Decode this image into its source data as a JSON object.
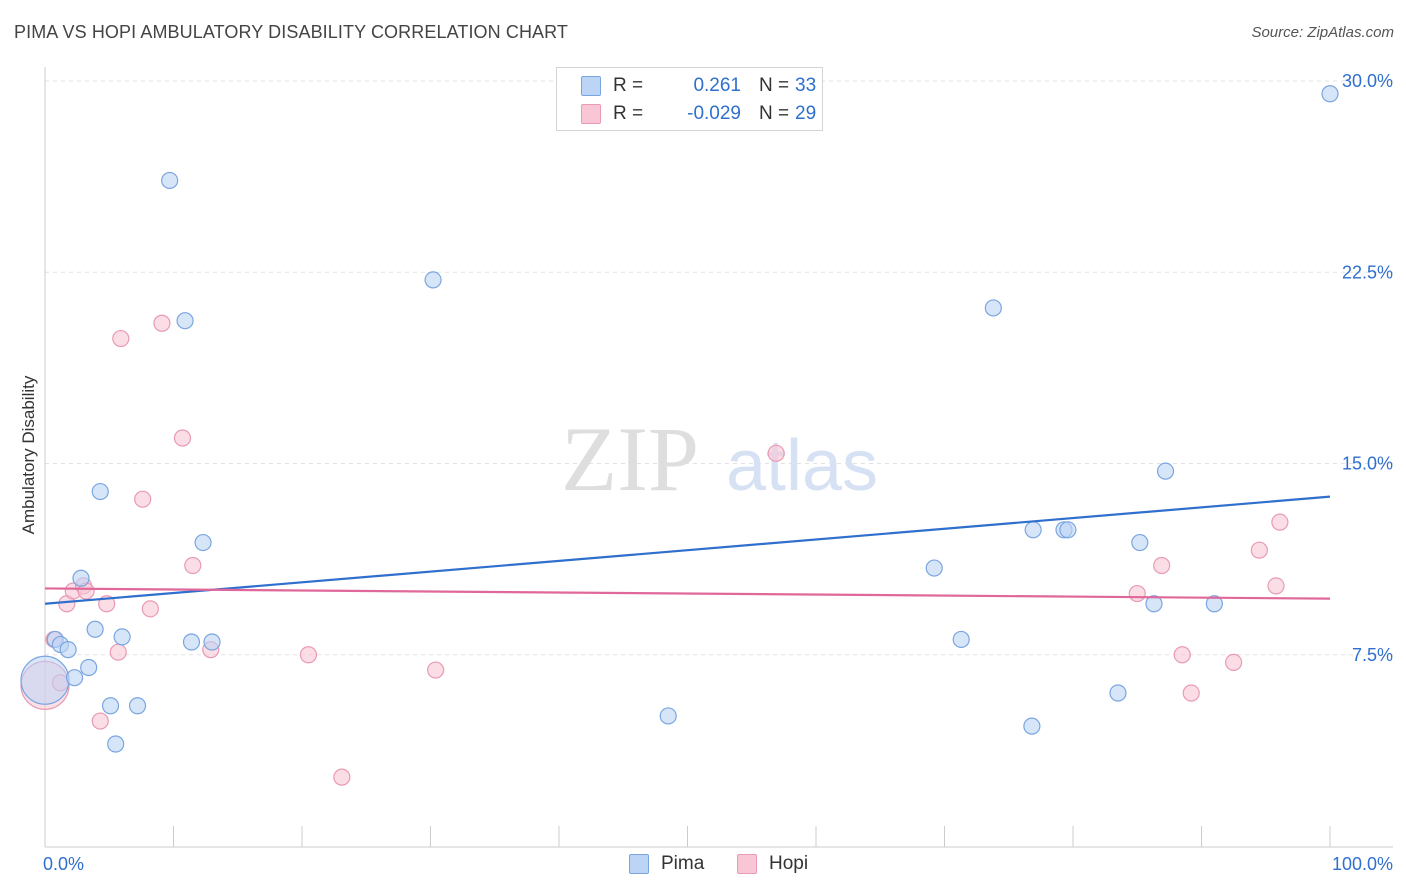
{
  "header": {
    "title": "PIMA VS HOPI AMBULATORY DISABILITY CORRELATION CHART",
    "source": "Source: ZipAtlas.com"
  },
  "watermark": {
    "part1": "ZIP",
    "part2": "atlas"
  },
  "legend": {
    "r_label": "R =",
    "n_label": "N =",
    "rows": [
      {
        "r": "0.261",
        "n": "33",
        "fill": "#bcd4f5",
        "stroke": "#7aa6e0"
      },
      {
        "r": "-0.029",
        "n": "29",
        "fill": "#f9c6d6",
        "stroke": "#e99ab4"
      }
    ]
  },
  "chart_data": {
    "type": "scatter",
    "ylabel": "Ambulatory Disability",
    "xlim": [
      0,
      100
    ],
    "ylim": [
      0,
      30
    ],
    "x_tick_labels": [
      {
        "value": 0,
        "label": "0.0%"
      },
      {
        "value": 100,
        "label": "100.0%"
      }
    ],
    "y_ticks": [
      {
        "value": 7.5,
        "label": "7.5%"
      },
      {
        "value": 15,
        "label": "15.0%"
      },
      {
        "value": 22.5,
        "label": "22.5%"
      },
      {
        "value": 30,
        "label": "30.0%"
      }
    ],
    "grid": true,
    "series": [
      {
        "name": "Pima",
        "color": "#2f6fcd",
        "fill": "#bcd4f5",
        "stroke": "#7aa6e0",
        "trend": [
          {
            "x": 0,
            "y": 9.5
          },
          {
            "x": 100,
            "y": 13.7
          }
        ],
        "points": [
          {
            "x": 0.0,
            "y": 6.5,
            "big": true
          },
          {
            "x": 0.8,
            "y": 8.1
          },
          {
            "x": 1.2,
            "y": 7.9
          },
          {
            "x": 1.8,
            "y": 7.7
          },
          {
            "x": 2.3,
            "y": 6.6
          },
          {
            "x": 2.8,
            "y": 10.5
          },
          {
            "x": 3.4,
            "y": 7.0
          },
          {
            "x": 3.9,
            "y": 8.5
          },
          {
            "x": 4.3,
            "y": 13.9
          },
          {
            "x": 5.1,
            "y": 5.5
          },
          {
            "x": 5.5,
            "y": 4.0
          },
          {
            "x": 6.0,
            "y": 8.2
          },
          {
            "x": 7.2,
            "y": 5.5
          },
          {
            "x": 9.7,
            "y": 26.1
          },
          {
            "x": 10.9,
            "y": 20.6
          },
          {
            "x": 11.4,
            "y": 8.0
          },
          {
            "x": 12.3,
            "y": 11.9
          },
          {
            "x": 13.0,
            "y": 8.0
          },
          {
            "x": 30.2,
            "y": 22.2
          },
          {
            "x": 48.5,
            "y": 5.1
          },
          {
            "x": 69.2,
            "y": 10.9
          },
          {
            "x": 71.3,
            "y": 8.1
          },
          {
            "x": 73.8,
            "y": 21.1
          },
          {
            "x": 76.8,
            "y": 4.7
          },
          {
            "x": 76.9,
            "y": 12.4
          },
          {
            "x": 79.3,
            "y": 12.4
          },
          {
            "x": 79.6,
            "y": 12.4
          },
          {
            "x": 83.5,
            "y": 6.0
          },
          {
            "x": 85.2,
            "y": 11.9
          },
          {
            "x": 86.3,
            "y": 9.5
          },
          {
            "x": 87.2,
            "y": 14.7
          },
          {
            "x": 91.0,
            "y": 9.5
          },
          {
            "x": 100.0,
            "y": 29.5
          }
        ]
      },
      {
        "name": "Hopi",
        "color": "#e0679a",
        "fill": "#f9c6d6",
        "stroke": "#e99ab4",
        "trend": [
          {
            "x": 0,
            "y": 10.1
          },
          {
            "x": 100,
            "y": 9.7
          }
        ],
        "points": [
          {
            "x": 0.0,
            "y": 6.3,
            "big": true
          },
          {
            "x": 0.7,
            "y": 8.1
          },
          {
            "x": 1.2,
            "y": 6.4
          },
          {
            "x": 1.7,
            "y": 9.5
          },
          {
            "x": 2.2,
            "y": 10.0
          },
          {
            "x": 3.0,
            "y": 10.2
          },
          {
            "x": 3.2,
            "y": 10.0
          },
          {
            "x": 4.3,
            "y": 4.9
          },
          {
            "x": 4.8,
            "y": 9.5
          },
          {
            "x": 5.7,
            "y": 7.6
          },
          {
            "x": 5.9,
            "y": 19.9
          },
          {
            "x": 7.6,
            "y": 13.6
          },
          {
            "x": 8.2,
            "y": 9.3
          },
          {
            "x": 9.1,
            "y": 20.5
          },
          {
            "x": 10.7,
            "y": 16.0
          },
          {
            "x": 11.5,
            "y": 11.0
          },
          {
            "x": 12.9,
            "y": 7.7
          },
          {
            "x": 20.5,
            "y": 7.5
          },
          {
            "x": 23.1,
            "y": 2.7
          },
          {
            "x": 30.4,
            "y": 6.9
          },
          {
            "x": 56.9,
            "y": 15.4
          },
          {
            "x": 85.0,
            "y": 9.9
          },
          {
            "x": 86.9,
            "y": 11.0
          },
          {
            "x": 88.5,
            "y": 7.5
          },
          {
            "x": 89.2,
            "y": 6.0
          },
          {
            "x": 92.5,
            "y": 7.2
          },
          {
            "x": 94.5,
            "y": 11.6
          },
          {
            "x": 95.8,
            "y": 10.2
          },
          {
            "x": 96.1,
            "y": 12.7
          }
        ]
      }
    ]
  }
}
